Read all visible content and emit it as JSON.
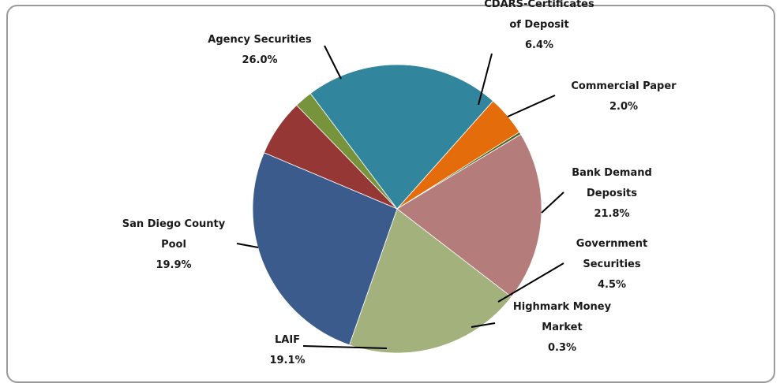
{
  "chart_data": {
    "type": "pie",
    "slices": [
      {
        "label": "CDARS-Certificates of Deposit",
        "label_lines": [
          "CDARS-Certificates",
          "of Deposit"
        ],
        "value": 6.4,
        "display": "6.4%",
        "color": "#953735"
      },
      {
        "label": "Commercial Paper",
        "label_lines": [
          "Commercial Paper"
        ],
        "value": 2.0,
        "display": "2.0%",
        "color": "#77933c"
      },
      {
        "label": "Bank Demand Deposits",
        "label_lines": [
          "Bank Demand",
          "Deposits"
        ],
        "value": 21.8,
        "display": "21.8%",
        "color": "#31859c"
      },
      {
        "label": "Government Securities",
        "label_lines": [
          "Government",
          "Securities"
        ],
        "value": 4.5,
        "display": "4.5%",
        "color": "#e46c0a"
      },
      {
        "label": "Highmark Money Market",
        "label_lines": [
          "Highmark Money",
          "Market"
        ],
        "value": 0.3,
        "display": "0.3%",
        "color": "#4f6228"
      },
      {
        "label": "LAIF",
        "label_lines": [
          "LAIF"
        ],
        "value": 19.1,
        "display": "19.1%",
        "color": "#b47c7a"
      },
      {
        "label": "San Diego County Pool",
        "label_lines": [
          "San Diego County",
          "Pool"
        ],
        "value": 19.9,
        "display": "19.9%",
        "color": "#a3b17c"
      },
      {
        "label": "Agency Securities",
        "label_lines": [
          "Agency Securities"
        ],
        "value": 26.0,
        "display": "26.0%",
        "color": "#3a5b8c"
      }
    ]
  }
}
